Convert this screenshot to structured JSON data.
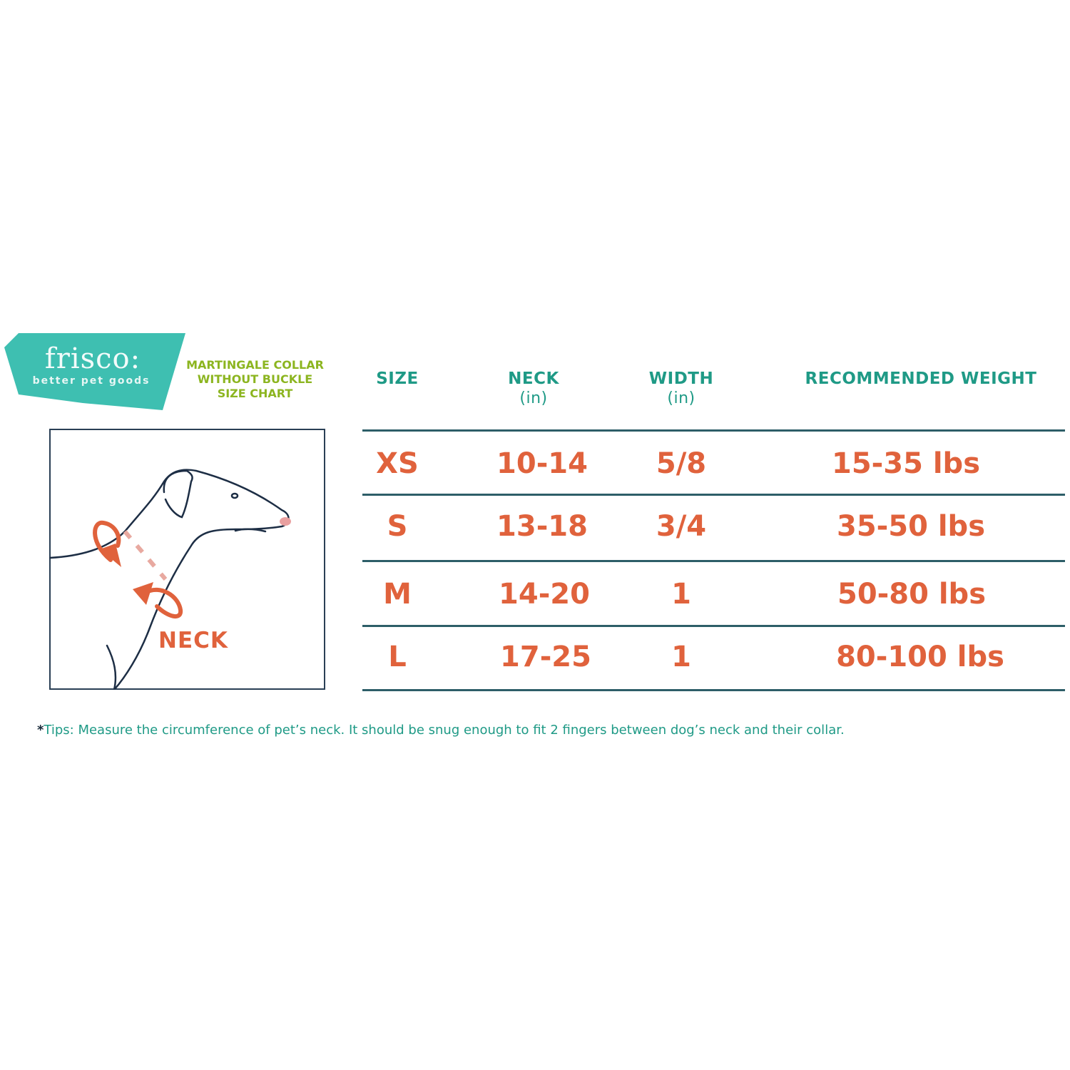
{
  "brand": {
    "name": "frisco:",
    "tagline": "better pet goods",
    "color": "#3ebfb1"
  },
  "title": {
    "lines": [
      "MARTINGALE COLLAR",
      "WITHOUT BUCKLE",
      "SIZE CHART"
    ],
    "color": "#8cb520"
  },
  "illustration": {
    "label": "NECK",
    "accent": "#e0623c"
  },
  "table": {
    "headers": [
      {
        "label": "SIZE",
        "unit": ""
      },
      {
        "label": "NECK",
        "unit": "(in)"
      },
      {
        "label": "WIDTH",
        "unit": "(in)"
      },
      {
        "label": "RECOMMENDED WEIGHT",
        "unit": ""
      }
    ],
    "rows": [
      [
        "XS",
        "10-14",
        "5/8",
        "15-35 lbs"
      ],
      [
        "S",
        "13-18",
        "3/4",
        "35-50 lbs"
      ],
      [
        "M",
        "14-20",
        "1",
        "50-80 lbs"
      ],
      [
        "L",
        "17-25",
        "1",
        "80-100 lbs"
      ]
    ],
    "header_color": "#1f9a86",
    "value_color": "#e0623c"
  },
  "tips": {
    "star": "*",
    "text": "Tips: Measure the circumference of pet’s neck. It should be snug enough to fit 2 fingers between dog’s neck and their collar."
  }
}
